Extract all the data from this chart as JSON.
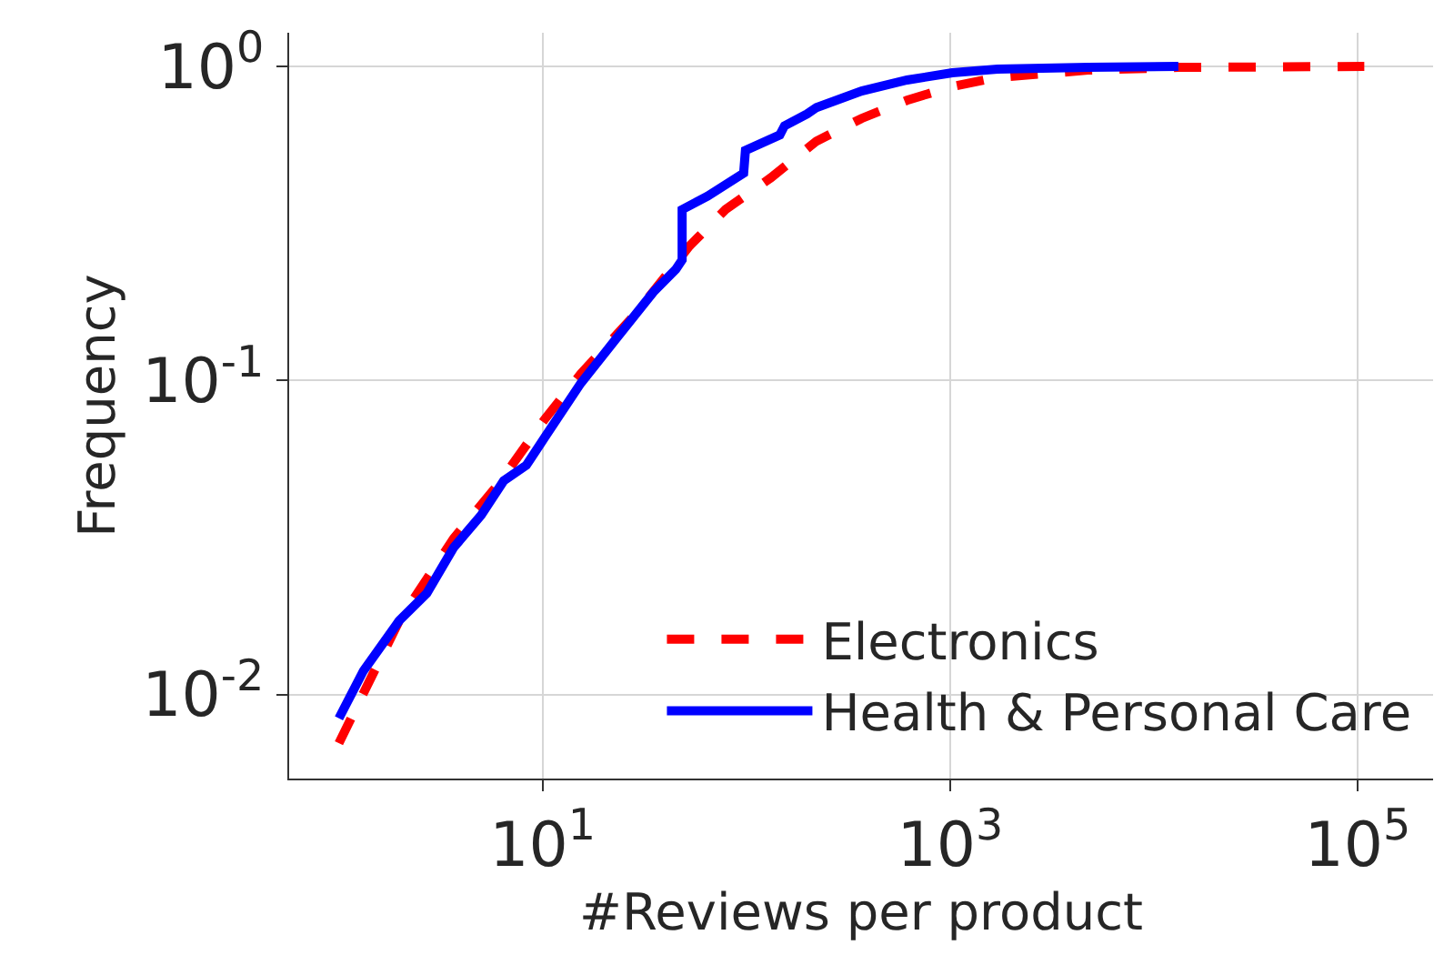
{
  "chart_data": {
    "type": "line",
    "xlabel": "#Reviews per product",
    "ylabel": "Frequency",
    "log": "xy",
    "grid": true,
    "legend": "bottom right",
    "xlim": [
      0.57,
      235000
    ],
    "ylim": [
      0.0054,
      1.28
    ],
    "xticks": [
      {
        "value": 10,
        "label": "10$^{1}$"
      },
      {
        "value": 1000,
        "label": "10$^{3}$"
      },
      {
        "value": 100000,
        "label": "10$^{5}$"
      }
    ],
    "yticks": [
      {
        "value": 0.01,
        "label": "10$^{-2}$"
      },
      {
        "value": 0.1,
        "label": "10$^{-1}$"
      },
      {
        "value": 1,
        "label": "10$^{0}$"
      }
    ],
    "series": [
      {
        "name": "Electronics",
        "color": "#ff0000",
        "line_style": "dashed",
        "x": [
          1,
          1.32,
          1.98,
          3.66,
          6.1,
          10.2,
          15.4,
          28.4,
          52.6,
          79,
          132,
          221,
          368,
          615,
          1025,
          1710,
          4760,
          13200,
          108000
        ],
        "values": [
          0.007,
          0.0101,
          0.0172,
          0.0314,
          0.047,
          0.075,
          0.105,
          0.162,
          0.268,
          0.35,
          0.442,
          0.578,
          0.683,
          0.78,
          0.863,
          0.923,
          0.973,
          0.993,
          1.0
        ]
      },
      {
        "name": "Health & Personal Care",
        "color": "#0000ff",
        "line_style": "solid",
        "x": [
          1,
          1.32,
          1.98,
          2.7,
          3.66,
          4.99,
          6.44,
          8.32,
          10.2,
          15.4,
          23.2,
          34.9,
          45.1,
          48.4,
          48.4,
          64.5,
          97,
          99,
          146,
          154,
          199,
          221,
          368,
          615,
          1025,
          1710,
          4760,
          13200
        ],
        "values": [
          0.0084,
          0.0119,
          0.0172,
          0.021,
          0.0294,
          0.0372,
          0.0479,
          0.0537,
          0.0656,
          0.098,
          0.137,
          0.191,
          0.226,
          0.242,
          0.35,
          0.386,
          0.457,
          0.54,
          0.605,
          0.647,
          0.706,
          0.74,
          0.835,
          0.905,
          0.954,
          0.98,
          0.993,
          1.0
        ]
      }
    ]
  }
}
